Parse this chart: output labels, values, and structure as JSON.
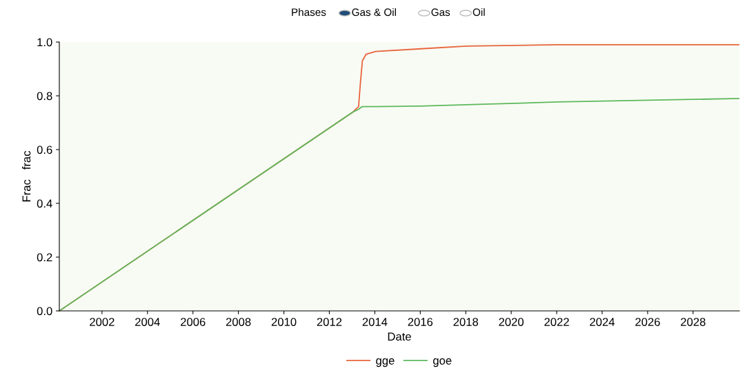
{
  "chart_data": {
    "type": "line",
    "xlabel": "Date",
    "ylabel": "Frac   frac",
    "annotations": [
      "Phases",
      "Gas & Oil",
      "Gas",
      "Oil"
    ],
    "x": [
      "2000-02",
      "2013-01",
      "2013-04",
      "2013-05",
      "2013-06",
      "2013-08",
      "2014-01",
      "2016-01",
      "2018-01",
      "2022-01",
      "2030-01"
    ],
    "series": [
      {
        "name": "gge",
        "color": "#e8643c",
        "values": [
          0.0,
          0.74,
          0.76,
          0.85,
          0.93,
          0.955,
          0.965,
          0.975,
          0.985,
          0.99,
          0.99
        ]
      },
      {
        "name": "goe",
        "color": "#5cb85c",
        "values": [
          0.0,
          0.74,
          0.75,
          0.755,
          0.76,
          0.76,
          0.76,
          0.762,
          0.767,
          0.777,
          0.79
        ]
      }
    ],
    "xlim": [
      "2000-02",
      "2030-01"
    ],
    "xticks": [
      {
        "value": "2002-01-01",
        "label": "2002"
      },
      {
        "value": "2004-01-01",
        "label": "2004"
      },
      {
        "value": "2006-01-01",
        "label": "2006"
      },
      {
        "value": "2008-01-01",
        "label": "2008"
      },
      {
        "value": "2010-01-01",
        "label": "2010"
      },
      {
        "value": "2012-01-01",
        "label": "2012"
      },
      {
        "value": "2014-01-01",
        "label": "2014"
      },
      {
        "value": "2016-01-01",
        "label": "2016"
      },
      {
        "value": "2018-01-01",
        "label": "2018"
      },
      {
        "value": "2020-01-01",
        "label": "2020"
      },
      {
        "value": "2022-01-01",
        "label": "2022"
      },
      {
        "value": "2024-01-01",
        "label": "2024"
      },
      {
        "value": "2026-01-01",
        "label": "2026"
      },
      {
        "value": "2028-01-01",
        "label": "2028"
      }
    ],
    "ylim": [
      0,
      1.0
    ],
    "yticks": [
      {
        "value": 0,
        "label": "0.0"
      },
      {
        "value": 0.2,
        "label": "0.2"
      },
      {
        "value": 0.4,
        "label": "0.4"
      },
      {
        "value": 0.6,
        "label": "0.6"
      },
      {
        "value": 0.8,
        "label": "0.8"
      },
      {
        "value": 1.0,
        "label": "1.0"
      }
    ],
    "grid": false,
    "legend": "bottom",
    "marker": "none",
    "line_style": "solid"
  }
}
